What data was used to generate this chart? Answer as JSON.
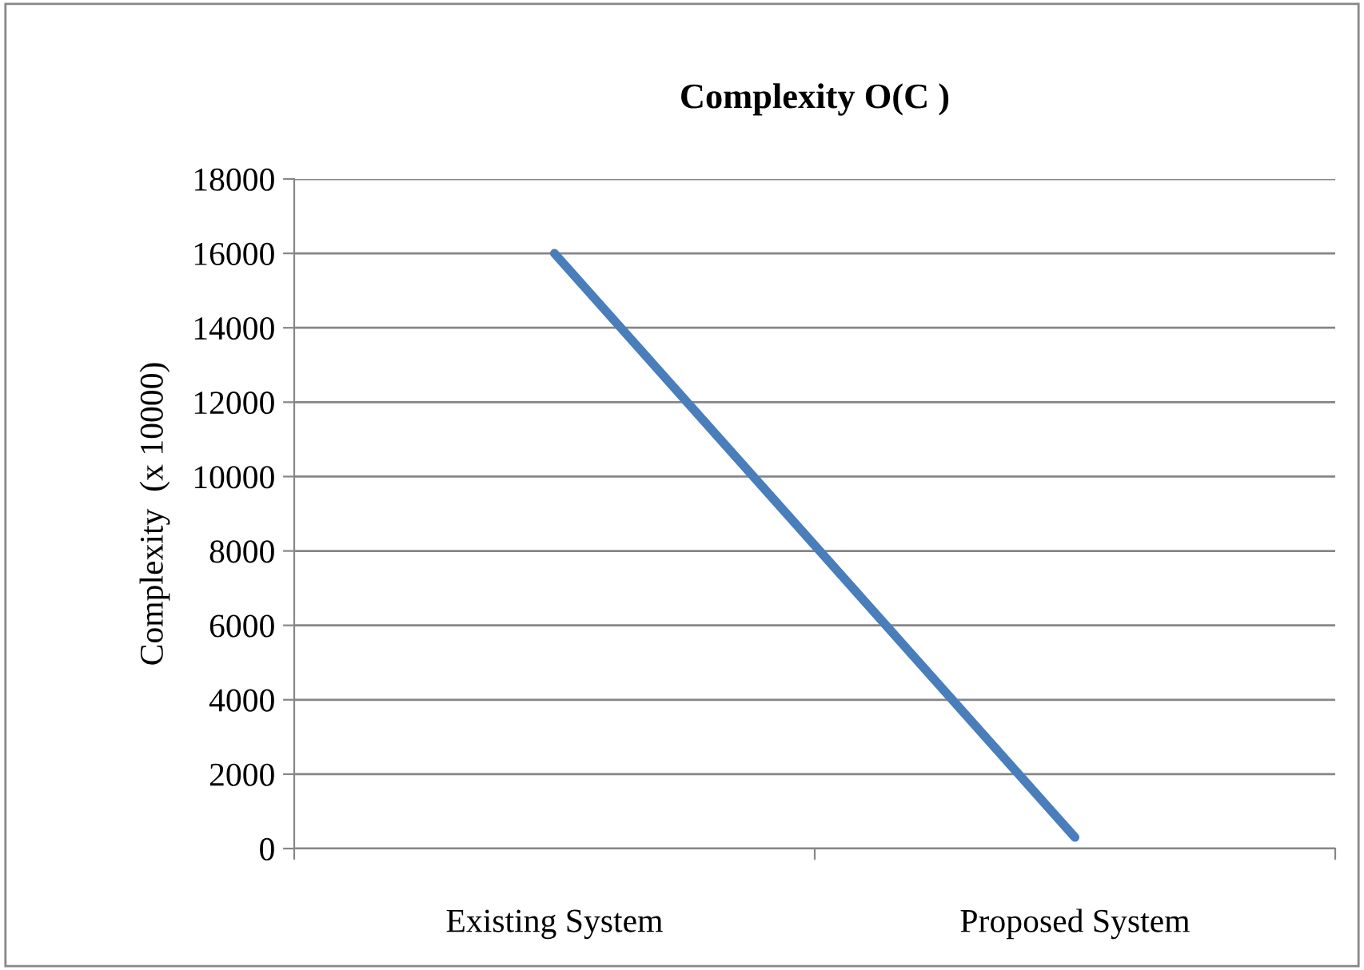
{
  "chart_data": {
    "type": "line",
    "title": "Complexity O(C )",
    "ylabel": "Complexity  (x 10000)",
    "categories": [
      "Existing System",
      "Proposed System"
    ],
    "series": [
      {
        "color": "#4a7ebb",
        "values": [
          16000,
          300
        ]
      }
    ],
    "ylim": [
      0,
      18000
    ],
    "yticks": [
      0,
      2000,
      4000,
      6000,
      8000,
      10000,
      12000,
      14000,
      16000,
      18000
    ],
    "grid": "y",
    "legend": false,
    "marker": "none",
    "line_style": "solid"
  }
}
